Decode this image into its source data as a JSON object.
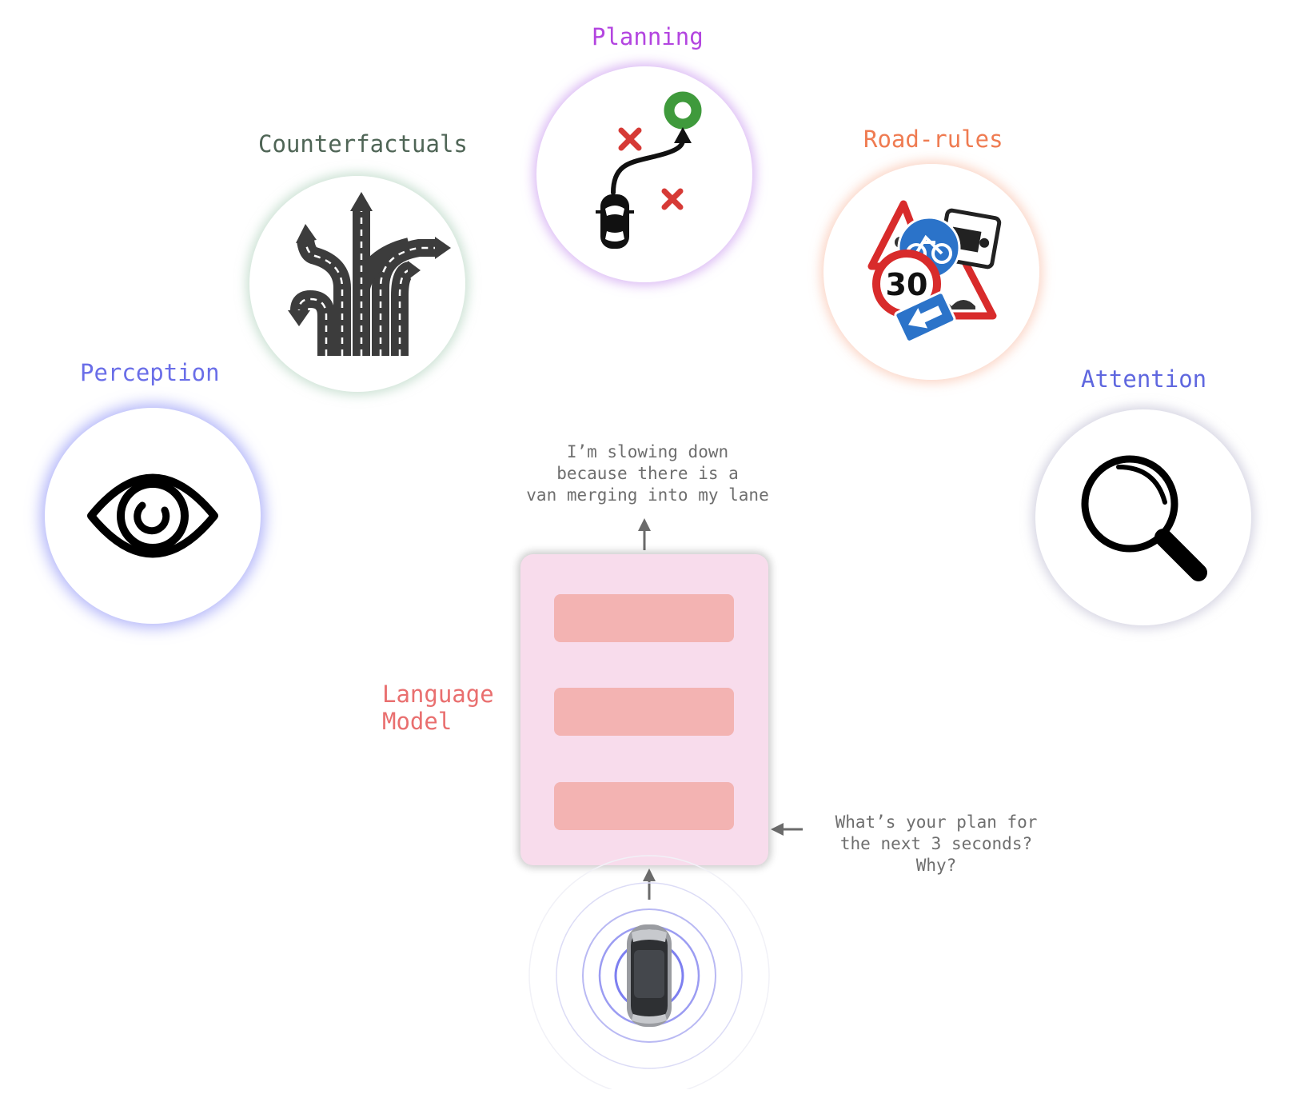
{
  "nodes": {
    "planning": {
      "label": "Planning",
      "color": "#b345e0",
      "glow": "#cc8cf0"
    },
    "counterfactuals": {
      "label": "Counterfactuals",
      "color": "#4f6556",
      "glow": "#9fc4ab"
    },
    "road_rules": {
      "label": "Road-rules",
      "color": "#ef7b51",
      "glow": "#f7b297"
    },
    "perception": {
      "label": "Perception",
      "color": "#6a6ee8",
      "glow": "#8f93f6"
    },
    "attention": {
      "label": "Attention",
      "color": "#5f67df",
      "glow": "#b9b8cf"
    }
  },
  "language_model": {
    "label_line1": "Language",
    "label_line2": "Model",
    "color": "#e96f6f",
    "box_color": "#f8dcec",
    "layer_color": "#f3b3b2"
  },
  "output_text": {
    "line1": "I’m slowing down",
    "line2": "because there is a",
    "line3": "van merging into my lane"
  },
  "query_text": {
    "line1": "What’s your plan for",
    "line2": "the next 3 seconds?",
    "line3": "Why?"
  },
  "sign_text": {
    "speed_limit": "30"
  },
  "colors": {
    "text_grey": "#6e6e6e",
    "radar": "#7d7ff0",
    "goal_green": "#3f9a3c",
    "cross_red": "#d63a36"
  }
}
